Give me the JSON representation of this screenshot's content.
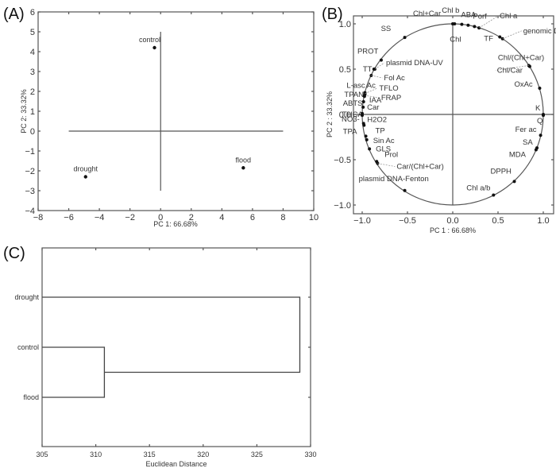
{
  "chart_data": [
    {
      "panel": "(A)",
      "type": "scatter",
      "title": "",
      "xlabel": "PC 1: 66.68%",
      "ylabel": "PC 2: 33.32%",
      "xlim": [
        -8,
        10
      ],
      "ylim": [
        -4,
        6
      ],
      "xticks": [
        -8,
        -6,
        -4,
        -2,
        0,
        2,
        4,
        6,
        8,
        10
      ],
      "yticks": [
        -4,
        -3,
        -2,
        -1,
        0,
        1,
        2,
        3,
        4,
        5,
        6
      ],
      "reference_lines": {
        "horizontal": {
          "y": 0,
          "x_from": -6,
          "x_to": 8
        },
        "vertical": {
          "x": 0,
          "y_from": -3,
          "y_to": 5
        }
      },
      "points": [
        {
          "label": "control",
          "x": -0.4,
          "y": 4.2
        },
        {
          "label": "drought",
          "x": -4.9,
          "y": -2.3
        },
        {
          "label": "flood",
          "x": 5.4,
          "y": -1.85
        }
      ]
    },
    {
      "panel": "(B)",
      "type": "scatter",
      "subtype": "correlation circle (loadings)",
      "xlabel": "PC 1 : 66.68%",
      "ylabel": "PC 2 : 33.32%",
      "xlim": [
        -1.1,
        1.1
      ],
      "ylim": [
        -1.1,
        1.1
      ],
      "xticks": [
        "-1.0",
        "-0.5",
        "0.0",
        "0.5",
        "1.0"
      ],
      "yticks": [
        "-1.0",
        "-0.5",
        "0.0",
        "0.5",
        "1.0"
      ],
      "unit_circle": true,
      "points": [
        {
          "label": "Chl+Car",
          "x": 0.0,
          "y": 1.0
        },
        {
          "label": "Chl b",
          "x": 0.02,
          "y": 1.0
        },
        {
          "label": "Chl",
          "x": 0.1,
          "y": 0.995
        },
        {
          "label": "ABA",
          "x": 0.17,
          "y": 0.985
        },
        {
          "label": "Porf",
          "x": 0.24,
          "y": 0.97
        },
        {
          "label": "Chl a",
          "x": 0.29,
          "y": 0.955
        },
        {
          "label": "TF",
          "x": 0.52,
          "y": 0.855
        },
        {
          "label": "genomic DNA",
          "x": 0.55,
          "y": 0.835
        },
        {
          "label": "SS",
          "x": -0.53,
          "y": 0.85
        },
        {
          "label": "Chl/(Chl+Car)",
          "x": 0.85,
          "y": 0.53
        },
        {
          "label": "Chl/Car",
          "x": 0.84,
          "y": 0.54
        },
        {
          "label": "OxAc",
          "x": 0.96,
          "y": 0.29
        },
        {
          "label": "K",
          "x": 1.0,
          "y": 0.0
        },
        {
          "label": "Q",
          "x": 1.0,
          "y": -0.01
        },
        {
          "label": "Fer ac",
          "x": 0.97,
          "y": -0.23
        },
        {
          "label": "SA",
          "x": 0.93,
          "y": -0.37
        },
        {
          "label": "MDA",
          "x": 0.92,
          "y": -0.39
        },
        {
          "label": "DPPH",
          "x": 0.68,
          "y": -0.74
        },
        {
          "label": "Chl a/b",
          "x": 0.45,
          "y": -0.89
        },
        {
          "label": "PROT",
          "x": -0.79,
          "y": 0.6
        },
        {
          "label": "TT",
          "x": -0.87,
          "y": 0.5
        },
        {
          "label": "plasmid DNA-UV",
          "x": -0.86,
          "y": 0.5
        },
        {
          "label": "Fol Ac",
          "x": -0.9,
          "y": 0.43
        },
        {
          "label": "L-asc Ac",
          "x": -0.97,
          "y": 0.24
        },
        {
          "label": "TPAN",
          "x": -0.97,
          "y": 0.22
        },
        {
          "label": "TFLO",
          "x": -0.97,
          "y": 0.23
        },
        {
          "label": "FRAP",
          "x": -0.975,
          "y": 0.21
        },
        {
          "label": "IAA",
          "x": -0.975,
          "y": 0.2
        },
        {
          "label": "ABTS",
          "x": -0.985,
          "y": 0.14
        },
        {
          "label": "Car",
          "x": -0.99,
          "y": 0.08
        },
        {
          "label": "THCA",
          "x": -1.0,
          "y": 0.01
        },
        {
          "label": "NO3-",
          "x": -1.0,
          "y": -0.01
        },
        {
          "label": "H2O2",
          "x": -0.98,
          "y": -0.12
        },
        {
          "label": "TPA",
          "x": -0.985,
          "y": -0.1
        },
        {
          "label": "TP",
          "x": -0.96,
          "y": -0.24
        },
        {
          "label": "Sin Ac",
          "x": -0.95,
          "y": -0.28
        },
        {
          "label": "GLS",
          "x": -0.92,
          "y": -0.38
        },
        {
          "label": "Prol",
          "x": -0.84,
          "y": -0.52
        },
        {
          "label": "Car/(Chl+Car)",
          "x": -0.83,
          "y": -0.54
        },
        {
          "label": "plasmid DNA-Fenton",
          "x": -0.53,
          "y": -0.84
        }
      ]
    },
    {
      "panel": "(C)",
      "type": "dendrogram",
      "xlabel": "Euclidean Distance",
      "xlim": [
        305,
        330
      ],
      "xticks": [
        305,
        310,
        315,
        320,
        325,
        330
      ],
      "leaves": [
        "drought",
        "control",
        "flood"
      ],
      "merges": [
        {
          "members": [
            "control",
            "flood"
          ],
          "distance": 310.8
        },
        {
          "members": [
            "drought",
            "control+flood"
          ],
          "distance": 329.0
        }
      ]
    }
  ],
  "panels": {
    "a": {
      "label": "(A)",
      "xlabel": "PC 1: 66.68%",
      "ylabel": "PC 2: 33.32%"
    },
    "b": {
      "label": "(B)",
      "xlabel": "PC 1 : 66.68%",
      "ylabel": "PC 2 : 33.32%"
    },
    "c": {
      "label": "(C)",
      "xlabel": "Euclidean Distance"
    }
  }
}
